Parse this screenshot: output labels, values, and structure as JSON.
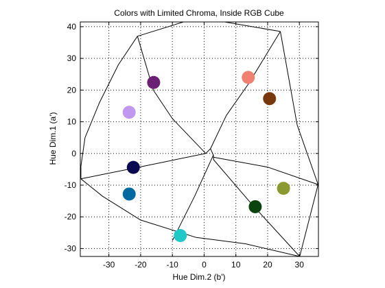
{
  "chart_data": {
    "type": "scatter",
    "title": "Colors with Limited Chroma, Inside RGB Cube",
    "xlabel": "Hue Dim.2 (b')",
    "ylabel": "Hue Dim.1 (a')",
    "xlim": [
      -39,
      36
    ],
    "ylim": [
      -32.5,
      41.5
    ],
    "xticks": [
      -30,
      -20,
      -10,
      0,
      10,
      20,
      30
    ],
    "yticks": [
      40,
      30,
      20,
      10,
      0,
      -10,
      -20,
      -30
    ],
    "grid": true,
    "points": [
      {
        "x": -15.9,
        "y": 22.4,
        "color": "#6b2173"
      },
      {
        "x": 13.9,
        "y": 24.0,
        "color": "#f08070"
      },
      {
        "x": -23.6,
        "y": 13.0,
        "color": "#c098f0"
      },
      {
        "x": 20.6,
        "y": 17.3,
        "color": "#78380c"
      },
      {
        "x": -22.3,
        "y": -4.4,
        "color": "#0a0a50"
      },
      {
        "x": 25.0,
        "y": -11.0,
        "color": "#8a9a30"
      },
      {
        "x": -23.6,
        "y": -12.8,
        "color": "#006aa0"
      },
      {
        "x": 16.1,
        "y": -16.8,
        "color": "#0c4410"
      },
      {
        "x": -7.5,
        "y": -25.9,
        "color": "#20c8c8"
      }
    ],
    "cube_outline": [
      [
        [
          -21.0,
          37.0
        ],
        [
          -6.5,
          41.5
        ],
        [
          6.5,
          41.5
        ],
        [
          24.0,
          38.5
        ]
      ],
      [
        [
          24.0,
          38.5
        ],
        [
          29.3,
          9.0
        ],
        [
          35.9,
          -9.8
        ]
      ],
      [
        [
          35.9,
          -9.8
        ],
        [
          30.1,
          -32.5
        ]
      ],
      [
        [
          30.1,
          -32.5
        ],
        [
          13.0,
          -28.5
        ],
        [
          -2.5,
          -26.5
        ],
        [
          -20.0,
          -21.0
        ],
        [
          -32.0,
          -13.5
        ],
        [
          -38.8,
          -8.0
        ]
      ],
      [
        [
          -38.8,
          -8.0
        ],
        [
          -38.8,
          -4.0
        ],
        [
          -37.5,
          5.0
        ],
        [
          -33.0,
          16.0
        ],
        [
          -27.0,
          28.0
        ],
        [
          -21.0,
          37.0
        ]
      ]
    ],
    "cube_edges": [
      [
        [
          0.5,
          0.0
        ],
        [
          2.0,
          1.5
        ],
        [
          2.9,
          -0.5
        ],
        [
          3.0,
          -2.0
        ],
        [
          2.9,
          -1.2
        ]
      ],
      [
        [
          -21.0,
          37.0
        ],
        [
          -16.0,
          20.0
        ],
        [
          -10.0,
          11.0
        ],
        [
          0.5,
          0.0
        ]
      ],
      [
        [
          24.0,
          38.5
        ],
        [
          14.0,
          22.0
        ],
        [
          7.0,
          12.0
        ],
        [
          2.0,
          1.5
        ]
      ],
      [
        [
          35.9,
          -9.8
        ],
        [
          20.0,
          -4.3
        ],
        [
          2.9,
          -1.2
        ]
      ],
      [
        [
          30.1,
          -32.5
        ],
        [
          15.0,
          -16.0
        ],
        [
          3.0,
          -2.0
        ]
      ],
      [
        [
          -10.0,
          -27.5
        ],
        [
          -3.0,
          -13.5
        ],
        [
          2.9,
          -0.5
        ]
      ],
      [
        [
          -38.8,
          -8.0
        ],
        [
          -20.0,
          -4.2
        ],
        [
          0.5,
          0.0
        ]
      ]
    ]
  }
}
